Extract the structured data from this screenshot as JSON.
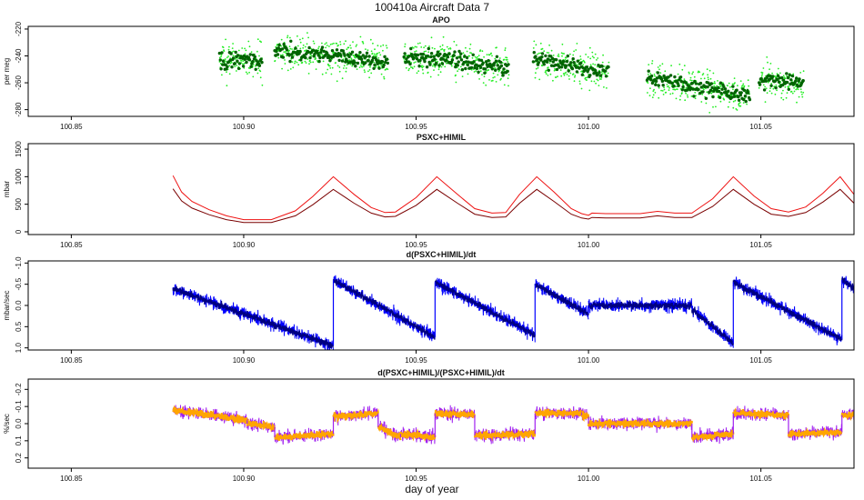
{
  "figure": {
    "title": "100410a   Aircraft Data 7",
    "xlabel": "day of year"
  },
  "colors": {
    "apo_light": "#22ee22",
    "apo_dark": "#006400",
    "psxc_upper": "#ee1111",
    "psxc_lower": "#7a0000",
    "deriv_light": "#0000ff",
    "deriv_dark": "#000080",
    "frac_purple": "#a020f0",
    "frac_orange": "#ffa500"
  },
  "chart_data": [
    {
      "type": "scatter",
      "title": "APO",
      "ylabel": "per meg",
      "xlim": [
        100.8375,
        101.077
      ],
      "ylim": [
        -285,
        -218
      ],
      "ytick_values": [
        -220,
        -240,
        -260,
        -280
      ],
      "ytick_labels": [
        "-220",
        "-240",
        "-260",
        "-280"
      ],
      "xtick_values": [
        100.85,
        100.9,
        100.95,
        101.0,
        101.05
      ],
      "xtick_labels": [
        "100.85",
        "100.90",
        "100.95",
        "101.00",
        "101.05"
      ],
      "segments": [
        {
          "x0": 100.893,
          "x1": 100.9055,
          "y0": -244,
          "y1": -243
        },
        {
          "x0": 100.909,
          "x1": 100.942,
          "y0": -236,
          "y1": -244
        },
        {
          "x0": 100.9465,
          "x1": 100.977,
          "y0": -240,
          "y1": -248
        },
        {
          "x0": 100.984,
          "x1": 101.006,
          "y0": -243,
          "y1": -252
        },
        {
          "x0": 101.017,
          "x1": 101.047,
          "y0": -256,
          "y1": -270
        },
        {
          "x0": 101.0495,
          "x1": 101.0625,
          "y0": -258,
          "y1": -261
        }
      ]
    },
    {
      "type": "line",
      "title": "PSXC+HIMIL",
      "ylabel": "mbar",
      "xlim": [
        100.8375,
        101.077
      ],
      "ylim": [
        -50,
        1600
      ],
      "ytick_values": [
        0,
        500,
        1000,
        1500
      ],
      "ytick_labels": [
        "0",
        "500",
        "1000",
        "1500"
      ],
      "xtick_values": [
        100.85,
        100.9,
        100.95,
        101.0,
        101.05
      ],
      "xtick_labels": [
        "100.85",
        "100.90",
        "100.95",
        "101.00",
        "101.05"
      ],
      "series": [
        {
          "name": "upper",
          "x": [
            100.8795,
            100.882,
            100.885,
            100.89,
            100.895,
            100.9,
            100.908,
            100.915,
            100.92,
            100.926,
            100.932,
            100.937,
            100.941,
            100.944,
            100.95,
            100.956,
            100.962,
            100.967,
            100.972,
            100.976,
            100.98,
            100.985,
            100.99,
            100.995,
            100.998,
            101.0,
            101.001,
            101.005,
            101.015,
            101.02,
            101.025,
            101.03,
            101.036,
            101.042,
            101.048,
            101.053,
            101.058,
            101.063,
            101.068,
            101.073,
            101.077
          ],
          "y": [
            1020,
            720,
            550,
            400,
            290,
            220,
            220,
            380,
            640,
            1000,
            680,
            440,
            350,
            360,
            620,
            1000,
            680,
            420,
            340,
            350,
            680,
            1000,
            720,
            420,
            330,
            300,
            340,
            330,
            330,
            370,
            340,
            340,
            600,
            1000,
            650,
            420,
            360,
            450,
            700,
            1000,
            680
          ]
        },
        {
          "name": "lower",
          "x": [
            100.8795,
            100.882,
            100.885,
            100.89,
            100.895,
            100.9,
            100.908,
            100.915,
            100.92,
            100.926,
            100.932,
            100.937,
            100.941,
            100.944,
            100.95,
            100.956,
            100.962,
            100.967,
            100.972,
            100.976,
            100.98,
            100.985,
            100.99,
            100.995,
            100.998,
            101.0,
            101.001,
            101.005,
            101.015,
            101.02,
            101.025,
            101.03,
            101.036,
            101.042,
            101.048,
            101.053,
            101.058,
            101.063,
            101.068,
            101.073,
            101.077
          ],
          "y": [
            780,
            560,
            430,
            310,
            220,
            170,
            170,
            290,
            490,
            770,
            520,
            340,
            270,
            280,
            480,
            770,
            520,
            320,
            260,
            270,
            520,
            770,
            550,
            320,
            250,
            230,
            260,
            250,
            250,
            290,
            260,
            260,
            460,
            770,
            500,
            320,
            280,
            350,
            540,
            770,
            520
          ]
        }
      ]
    },
    {
      "type": "scatter",
      "title": "d(PSXC+HIMIL)/dt",
      "ylabel": "mbar/sec",
      "ylabel_reversed": true,
      "xlim": [
        100.8375,
        101.077
      ],
      "ylim": [
        -1.05,
        1.05
      ],
      "ytick_values": [
        -1.0,
        -0.5,
        0.0,
        0.5,
        1.0
      ],
      "ytick_labels": [
        "-1.0",
        "-0.5",
        "0.0",
        "0.5",
        "1.0"
      ],
      "xtick_values": [
        100.85,
        100.9,
        100.95,
        101.0,
        101.05
      ],
      "xtick_labels": [
        "100.85",
        "100.90",
        "100.95",
        "101.00",
        "101.05"
      ],
      "segments": [
        {
          "x0": 100.8795,
          "x1": 100.926,
          "y0": -0.4,
          "y1": 0.95
        },
        {
          "x0": 100.926,
          "x1": 100.9555,
          "y0": -0.6,
          "y1": 0.75
        },
        {
          "x0": 100.9555,
          "x1": 100.9845,
          "y0": -0.55,
          "y1": 0.7
        },
        {
          "x0": 100.9845,
          "x1": 101.0,
          "y0": -0.5,
          "y1": 0.2
        },
        {
          "x0": 101.0,
          "x1": 101.03,
          "y0": 0.0,
          "y1": 0.0
        },
        {
          "x0": 101.03,
          "x1": 101.042,
          "y0": 0.1,
          "y1": 0.9
        },
        {
          "x0": 101.042,
          "x1": 101.0735,
          "y0": -0.55,
          "y1": 0.8
        },
        {
          "x0": 101.0735,
          "x1": 101.077,
          "y0": -0.6,
          "y1": -0.4
        }
      ]
    },
    {
      "type": "scatter",
      "title": "d(PSXC+HIMIL)/(PSXC+HIMIL)/dt",
      "ylabel": "%/sec",
      "ylabel_reversed": true,
      "xlim": [
        100.8375,
        101.077
      ],
      "ylim": [
        -0.26,
        0.26
      ],
      "ytick_values": [
        -0.2,
        -0.1,
        0.0,
        0.1,
        0.2
      ],
      "ytick_labels": [
        "-0.2",
        "-0.1",
        "0.0",
        "0.1",
        "0.2"
      ],
      "xtick_values": [
        100.85,
        100.9,
        100.95,
        101.0,
        101.05
      ],
      "xtick_labels": [
        "100.85",
        "100.90",
        "100.95",
        "101.00",
        "101.05"
      ],
      "segments": [
        {
          "x0": 100.8795,
          "x1": 100.901,
          "y0": -0.08,
          "y1": -0.02
        },
        {
          "x0": 100.901,
          "x1": 100.909,
          "y0": 0.0,
          "y1": 0.02
        },
        {
          "x0": 100.909,
          "x1": 100.926,
          "y0": 0.08,
          "y1": 0.06
        },
        {
          "x0": 100.926,
          "x1": 100.939,
          "y0": -0.04,
          "y1": -0.06
        },
        {
          "x0": 100.939,
          "x1": 100.9455,
          "y0": 0.02,
          "y1": 0.08
        },
        {
          "x0": 100.9455,
          "x1": 100.9555,
          "y0": 0.06,
          "y1": 0.08
        },
        {
          "x0": 100.9555,
          "x1": 100.967,
          "y0": -0.06,
          "y1": -0.05
        },
        {
          "x0": 100.967,
          "x1": 100.9845,
          "y0": 0.07,
          "y1": 0.06
        },
        {
          "x0": 100.9845,
          "x1": 100.998,
          "y0": -0.06,
          "y1": -0.06
        },
        {
          "x0": 100.998,
          "x1": 101.0,
          "y0": -0.05,
          "y1": -0.04
        },
        {
          "x0": 101.0,
          "x1": 101.03,
          "y0": 0.0,
          "y1": 0.0
        },
        {
          "x0": 101.03,
          "x1": 101.042,
          "y0": 0.08,
          "y1": 0.06
        },
        {
          "x0": 101.042,
          "x1": 101.058,
          "y0": -0.06,
          "y1": -0.05
        },
        {
          "x0": 101.058,
          "x1": 101.0735,
          "y0": 0.06,
          "y1": 0.05
        },
        {
          "x0": 101.0735,
          "x1": 101.077,
          "y0": -0.05,
          "y1": -0.05
        }
      ]
    }
  ]
}
